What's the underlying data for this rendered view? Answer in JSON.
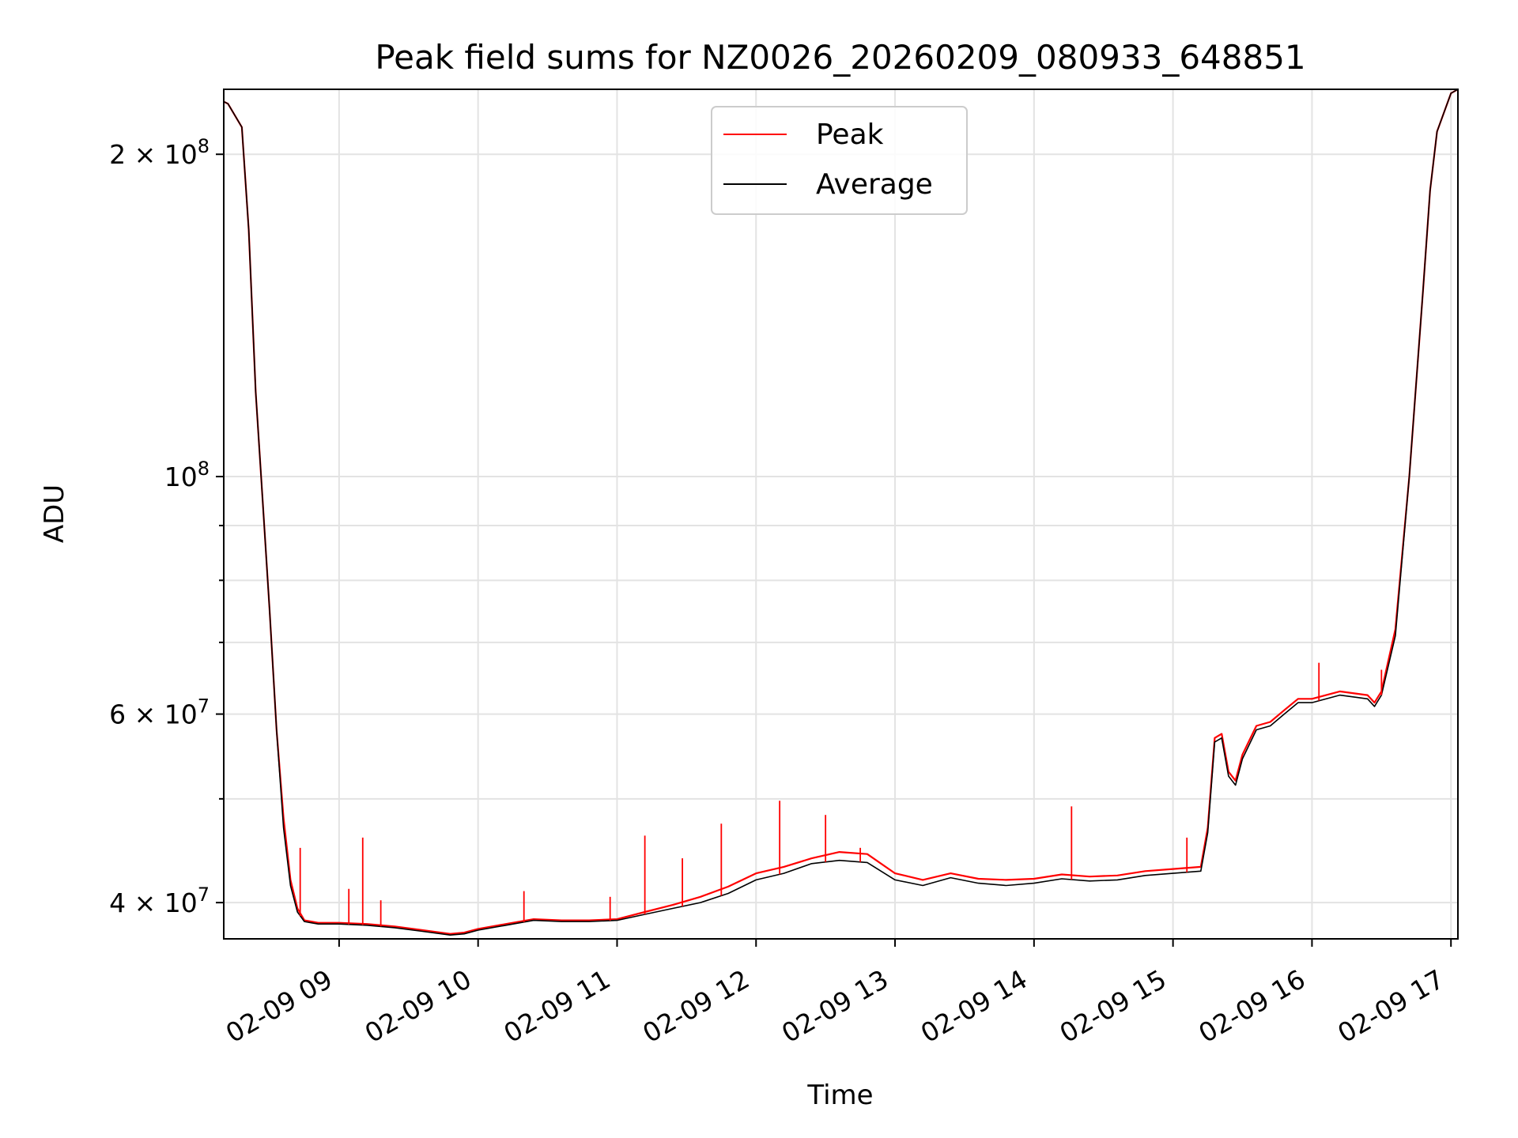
{
  "chart_data": {
    "type": "line",
    "title": "Peak field sums for NZ0026_20260209_080933_648851",
    "xlabel": "Time",
    "ylabel": "ADU",
    "yscale": "log",
    "xlim": [
      8.17,
      17.05
    ],
    "ylim": [
      37000000,
      230000000
    ],
    "grid": true,
    "legend_position": "upper center",
    "x_ticks": [
      {
        "value": 9,
        "label": "02-09 09"
      },
      {
        "value": 10,
        "label": "02-09 10"
      },
      {
        "value": 11,
        "label": "02-09 11"
      },
      {
        "value": 12,
        "label": "02-09 12"
      },
      {
        "value": 13,
        "label": "02-09 13"
      },
      {
        "value": 14,
        "label": "02-09 14"
      },
      {
        "value": 15,
        "label": "02-09 15"
      },
      {
        "value": 16,
        "label": "02-09 16"
      },
      {
        "value": 17,
        "label": "02-09 17"
      }
    ],
    "y_ticks": [
      {
        "value": 40000000,
        "base": "4 × 10",
        "exp": "7"
      },
      {
        "value": 60000000,
        "base": "6 × 10",
        "exp": "7"
      },
      {
        "value": 100000000,
        "base": "10",
        "exp": "8"
      },
      {
        "value": 200000000,
        "base": "2 × 10",
        "exp": "8"
      }
    ],
    "y_minor_ticks": [
      50000000,
      70000000,
      80000000,
      90000000
    ],
    "x": [
      8.17,
      8.2,
      8.3,
      8.35,
      8.4,
      8.45,
      8.5,
      8.55,
      8.6,
      8.65,
      8.7,
      8.75,
      8.8,
      8.85,
      8.9,
      9.0,
      9.2,
      9.4,
      9.6,
      9.8,
      9.9,
      10.0,
      10.2,
      10.4,
      10.6,
      10.8,
      11.0,
      11.2,
      11.4,
      11.6,
      11.8,
      12.0,
      12.2,
      12.4,
      12.6,
      12.8,
      13.0,
      13.2,
      13.4,
      13.6,
      13.8,
      14.0,
      14.2,
      14.4,
      14.6,
      14.8,
      15.0,
      15.2,
      15.25,
      15.3,
      15.35,
      15.4,
      15.45,
      15.5,
      15.6,
      15.7,
      15.8,
      15.9,
      16.0,
      16.2,
      16.4,
      16.45,
      16.5,
      16.6,
      16.7,
      16.8,
      16.85,
      16.9,
      17.0,
      17.05
    ],
    "series": [
      {
        "name": "Peak",
        "color": "#ff0000",
        "values": [
          224000000,
          223000000,
          212000000,
          170000000,
          120000000,
          95000000,
          75000000,
          58000000,
          48000000,
          42000000,
          39500000,
          38500000,
          38400000,
          38300000,
          38300000,
          38300000,
          38200000,
          38000000,
          37700000,
          37400000,
          37500000,
          37800000,
          38200000,
          38600000,
          38500000,
          38500000,
          38600000,
          39200000,
          39800000,
          40500000,
          41400000,
          42600000,
          43200000,
          44000000,
          44600000,
          44400000,
          42600000,
          42000000,
          42600000,
          42100000,
          42000000,
          42100000,
          42500000,
          42300000,
          42400000,
          42800000,
          43000000,
          43200000,
          47000000,
          57000000,
          57500000,
          53000000,
          52000000,
          55000000,
          58500000,
          59000000,
          60500000,
          62000000,
          62000000,
          63000000,
          62500000,
          61500000,
          63000000,
          72000000,
          100000000,
          150000000,
          185000000,
          210000000,
          228000000,
          230000000
        ]
      },
      {
        "name": "Average",
        "color": "#000000",
        "values": [
          224000000,
          223000000,
          212000000,
          170000000,
          120000000,
          95000000,
          75000000,
          58000000,
          47000000,
          41500000,
          39200000,
          38400000,
          38300000,
          38200000,
          38200000,
          38200000,
          38100000,
          37900000,
          37600000,
          37300000,
          37400000,
          37700000,
          38100000,
          38500000,
          38400000,
          38400000,
          38500000,
          39000000,
          39500000,
          40000000,
          40800000,
          42000000,
          42600000,
          43500000,
          43800000,
          43600000,
          42000000,
          41500000,
          42200000,
          41700000,
          41500000,
          41700000,
          42100000,
          41900000,
          42000000,
          42400000,
          42600000,
          42800000,
          46500000,
          56500000,
          57000000,
          52500000,
          51500000,
          54500000,
          58000000,
          58500000,
          60000000,
          61500000,
          61500000,
          62500000,
          62000000,
          61000000,
          62500000,
          71000000,
          100000000,
          150000000,
          185000000,
          210000000,
          228000000,
          230000000
        ]
      }
    ],
    "peak_spikes": [
      {
        "x": 8.72,
        "y": 45000000
      },
      {
        "x": 9.07,
        "y": 41200000
      },
      {
        "x": 9.17,
        "y": 46000000
      },
      {
        "x": 9.3,
        "y": 40200000
      },
      {
        "x": 10.33,
        "y": 41000000
      },
      {
        "x": 10.95,
        "y": 40500000
      },
      {
        "x": 11.2,
        "y": 46200000
      },
      {
        "x": 11.47,
        "y": 44000000
      },
      {
        "x": 11.75,
        "y": 47400000
      },
      {
        "x": 12.17,
        "y": 49800000
      },
      {
        "x": 12.5,
        "y": 48300000
      },
      {
        "x": 12.75,
        "y": 45000000
      },
      {
        "x": 14.27,
        "y": 49200000
      },
      {
        "x": 15.1,
        "y": 46000000
      },
      {
        "x": 16.05,
        "y": 67000000
      },
      {
        "x": 16.5,
        "y": 66000000
      }
    ]
  }
}
